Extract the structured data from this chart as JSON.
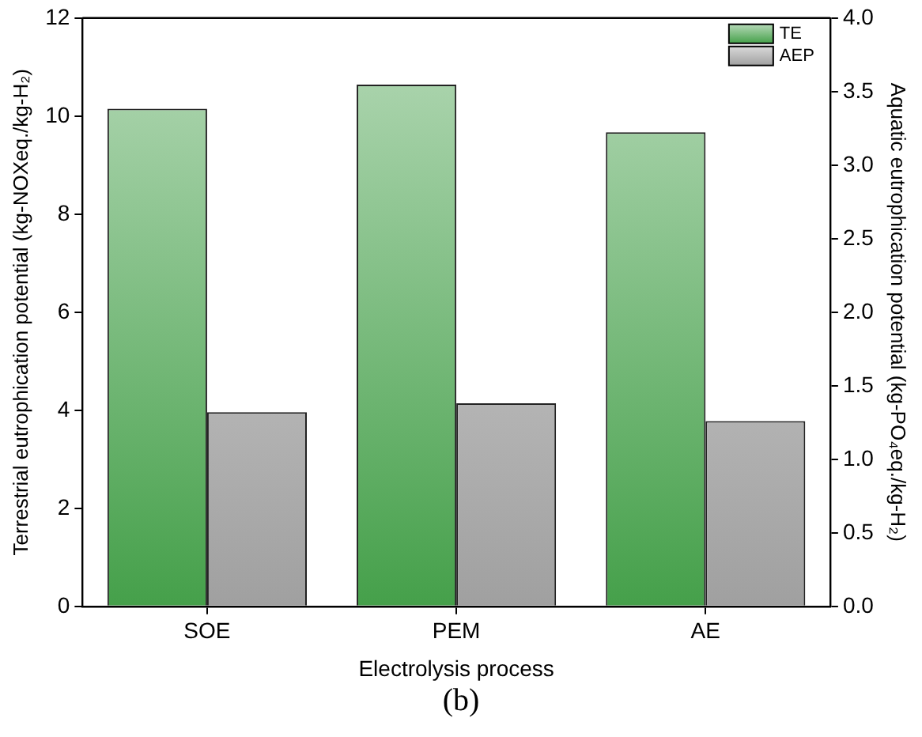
{
  "chart_data": {
    "type": "bar",
    "xlabel": "Electrolysis process",
    "ylabel": "Terrestrial eutrophication potential (kg-NOXeq./kg-H₂)",
    "y2label": "Aquatic eutrophication potential (kg-PO₄eq./kg-H₂)",
    "categories": [
      "SOE",
      "PEM",
      "AE"
    ],
    "series": [
      {
        "name": "TE",
        "color": "#45a04a",
        "values": [
          10.15,
          10.64,
          9.67
        ]
      },
      {
        "name": "AEP",
        "color": "#a0a0a0",
        "values": [
          1.32,
          1.38,
          1.26
        ],
        "axis": "y2"
      }
    ],
    "ylim": [
      0,
      12
    ],
    "yticks": [
      0,
      2,
      4,
      6,
      8,
      10,
      12
    ],
    "y2lim": [
      0,
      4
    ],
    "y2ticks": [
      {
        "value": 0,
        "label": "0.0"
      },
      {
        "value": 0.5,
        "label": "0.5"
      },
      {
        "value": 1,
        "label": "1.0"
      },
      {
        "value": 1.5,
        "label": "1.5"
      },
      {
        "value": 2,
        "label": "2.0"
      },
      {
        "value": 2.5,
        "label": "2.5"
      },
      {
        "value": 3,
        "label": "3.0"
      },
      {
        "value": 3.5,
        "label": "3.5"
      },
      {
        "value": 4,
        "label": "4.0"
      }
    ],
    "grid": false,
    "legend": "top right",
    "annotations": [
      "(b)"
    ]
  }
}
